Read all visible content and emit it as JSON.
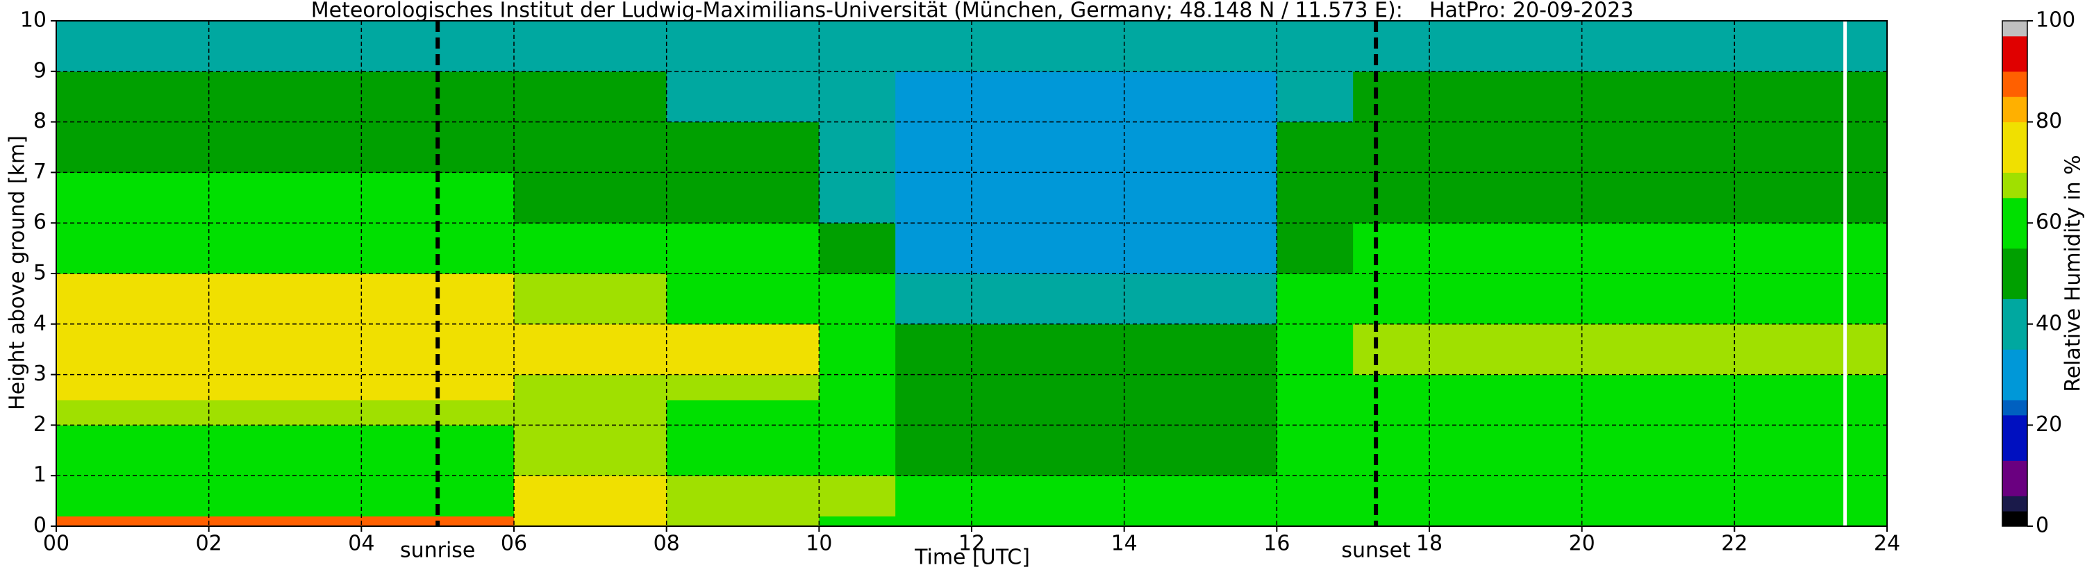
{
  "chart_data": {
    "type": "heatmap",
    "title": "Meteorologisches Institut der Ludwig-Maximilians-Universität (München, Germany; 48.148 N / 11.573 E):    HatPro: 20-09-2023",
    "xlabel": "Time [UTC]",
    "ylabel": "Height above ground [km]",
    "xlim": [
      0,
      24
    ],
    "ylim": [
      0,
      10
    ],
    "xticks": [
      {
        "value": 0,
        "label": "00"
      },
      {
        "value": 2,
        "label": "02"
      },
      {
        "value": 4,
        "label": "04"
      },
      {
        "value": 6,
        "label": "06"
      },
      {
        "value": 8,
        "label": "08"
      },
      {
        "value": 10,
        "label": "10"
      },
      {
        "value": 12,
        "label": "12"
      },
      {
        "value": 14,
        "label": "14"
      },
      {
        "value": 16,
        "label": "16"
      },
      {
        "value": 18,
        "label": "18"
      },
      {
        "value": 20,
        "label": "20"
      },
      {
        "value": 22,
        "label": "22"
      },
      {
        "value": 24,
        "label": "24"
      }
    ],
    "yticks": [
      0,
      1,
      2,
      3,
      4,
      5,
      6,
      7,
      8,
      9,
      10
    ],
    "grid": true,
    "x": [
      0,
      1,
      2,
      3,
      4,
      5,
      6,
      7,
      8,
      9,
      10,
      11,
      12,
      13,
      14,
      15,
      16,
      17,
      18,
      19,
      20,
      21,
      22,
      23,
      24
    ],
    "y": [
      0,
      0.2,
      1,
      2,
      2.5,
      3,
      4,
      5,
      6,
      7,
      8,
      9,
      10
    ],
    "z": [
      [
        88,
        88,
        88,
        88,
        88,
        88,
        75,
        75,
        65,
        65,
        62,
        60,
        60,
        60,
        60,
        60,
        60,
        62,
        62,
        62,
        62,
        62,
        62,
        62
      ],
      [
        62,
        62,
        62,
        62,
        62,
        62,
        74,
        74,
        68,
        68,
        66,
        58,
        58,
        58,
        58,
        58,
        60,
        62,
        62,
        62,
        62,
        62,
        62,
        62
      ],
      [
        62,
        62,
        62,
        62,
        62,
        62,
        65,
        65,
        60,
        60,
        58,
        52,
        52,
        52,
        52,
        52,
        57,
        60,
        60,
        60,
        60,
        60,
        60,
        60
      ],
      [
        65,
        65,
        65,
        65,
        65,
        65,
        65,
        65,
        62,
        62,
        57,
        52,
        52,
        52,
        52,
        52,
        55,
        60,
        60,
        60,
        60,
        60,
        60,
        60
      ],
      [
        70,
        70,
        70,
        70,
        70,
        70,
        68,
        68,
        66,
        66,
        62,
        50,
        50,
        50,
        50,
        50,
        60,
        63,
        63,
        63,
        63,
        63,
        63,
        63
      ],
      [
        75,
        75,
        75,
        75,
        75,
        75,
        72,
        72,
        70,
        70,
        64,
        45,
        45,
        45,
        45,
        45,
        62,
        68,
        68,
        68,
        68,
        68,
        68,
        68
      ],
      [
        72,
        72,
        72,
        72,
        72,
        72,
        66,
        66,
        64,
        64,
        55,
        38,
        38,
        38,
        38,
        38,
        58,
        64,
        64,
        64,
        64,
        64,
        64,
        64
      ],
      [
        60,
        60,
        60,
        60,
        60,
        60,
        58,
        58,
        57,
        57,
        48,
        33,
        33,
        33,
        33,
        33,
        52,
        58,
        58,
        58,
        58,
        58,
        58,
        58
      ],
      [
        55,
        55,
        55,
        55,
        55,
        55,
        52,
        52,
        52,
        52,
        44,
        32,
        32,
        32,
        32,
        32,
        50,
        54,
        54,
        54,
        54,
        54,
        54,
        54
      ],
      [
        52,
        52,
        52,
        52,
        52,
        52,
        48,
        48,
        50,
        50,
        40,
        32,
        32,
        32,
        32,
        32,
        45,
        52,
        52,
        52,
        52,
        52,
        52,
        52
      ],
      [
        48,
        48,
        48,
        48,
        48,
        48,
        45,
        45,
        44,
        44,
        37,
        33,
        33,
        33,
        33,
        33,
        40,
        48,
        48,
        48,
        48,
        48,
        48,
        48
      ],
      [
        42,
        42,
        42,
        42,
        42,
        42,
        40,
        40,
        40,
        40,
        36,
        36,
        36,
        36,
        36,
        36,
        38,
        42,
        42,
        42,
        42,
        42,
        42,
        42
      ]
    ],
    "markers": [
      {
        "x": 5.0,
        "label": "sunrise"
      },
      {
        "x": 17.3,
        "label": "sunset"
      }
    ],
    "white_line_x": 23.45,
    "colorbar": {
      "label": "Relative Humidity in %",
      "lim": [
        0,
        100
      ],
      "ticks": [
        0,
        20,
        40,
        60,
        80,
        100
      ],
      "levels": [
        0,
        3,
        6,
        13,
        22,
        25,
        35,
        45,
        55,
        65,
        70,
        80,
        85,
        90,
        97,
        100
      ],
      "colors": [
        "#000000",
        "#1a1a4a",
        "#6a0080",
        "#0010c0",
        "#0060c0",
        "#0098d8",
        "#00a8a0",
        "#00a000",
        "#00e000",
        "#a0e000",
        "#f0e000",
        "#ffb000",
        "#ff6000",
        "#e00000",
        "#c0c0c0"
      ]
    }
  }
}
